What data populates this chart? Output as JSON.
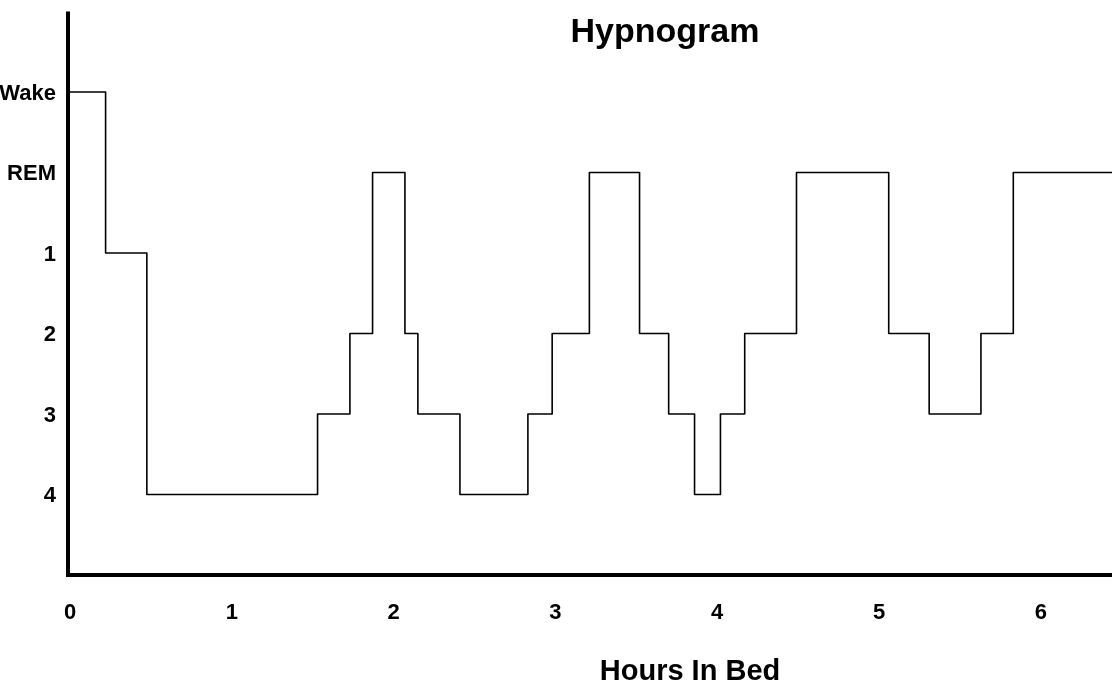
{
  "chart_data": {
    "type": "step",
    "title": "Hypnogram",
    "xlabel": "Hours In Bed",
    "x": [
      0,
      0.22,
      0.475,
      1.53,
      1.73,
      1.87,
      2.07,
      2.15,
      2.41,
      2.83,
      2.98,
      3.21,
      3.52,
      3.7,
      3.86,
      4.02,
      4.17,
      4.49,
      5.06,
      5.31,
      5.63,
      5.83,
      6.44
    ],
    "series": [
      {
        "color": "#000000",
        "values": [
          -1,
          1,
          4,
          3,
          2,
          0,
          2,
          3,
          4,
          3,
          2,
          0,
          2,
          3,
          4,
          3,
          2,
          0,
          2,
          3,
          2,
          0,
          0
        ]
      }
    ],
    "xlim": [
      0,
      6.44
    ],
    "xticks": [
      0,
      1,
      2,
      3,
      4,
      5,
      6
    ],
    "ylim": [
      5,
      -2
    ],
    "yticks": [
      {
        "value": -1,
        "label": "Wake"
      },
      {
        "value": 0,
        "label": "REM"
      },
      1,
      2,
      3,
      4
    ],
    "marker": "none",
    "line_style": "solid"
  }
}
